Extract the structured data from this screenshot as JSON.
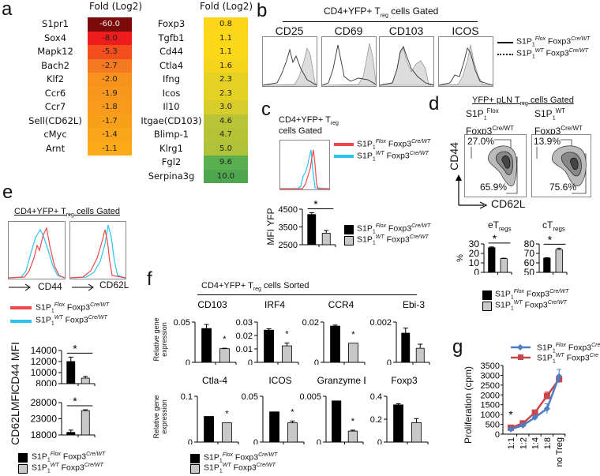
{
  "panels": {
    "a": "a",
    "b": "b",
    "c": "c",
    "d": "d",
    "e": "e",
    "f": "f",
    "g": "g"
  },
  "genotypes": {
    "flox": {
      "prefix": "S1P",
      "sub": "1",
      "allele": "Flox",
      "gene": "Foxp3",
      "gene_sup": "Cre/WT"
    },
    "wt": {
      "prefix": "S1P",
      "sub": "1",
      "allele": "WT",
      "gene": "Foxp3",
      "gene_sup": "Cre/WT"
    },
    "flox_g": {
      "prefix": "S1P",
      "sub": "1",
      "allele": "Flox",
      "gene": "Foxp3",
      "gene_sup": "Cre"
    },
    "wt_g": {
      "prefix": "S1P",
      "sub": "1",
      "allele": "WT",
      "gene": "Foxp3",
      "gene_sup": "Cre"
    }
  },
  "colors": {
    "flox_bar": "#000000",
    "wt_bar": "#c8c8c8",
    "flox_hist": "#f0484a",
    "wt_hist": "#29c4f0",
    "flox_line": "#4a7fc8",
    "wt_line": "#c8474a"
  },
  "panel_a": {
    "header": "Fold (Log2)",
    "down": [
      {
        "gene": "S1pr1",
        "value": "-60.0",
        "color": "#7b0a0a"
      },
      {
        "gene": "Sox4",
        "value": "-8.0",
        "color": "#ee1c1c"
      },
      {
        "gene": "Mapk12",
        "value": "-5.3",
        "color": "#f24e1e"
      },
      {
        "gene": "Bach2",
        "value": "-2.7",
        "color": "#f47920"
      },
      {
        "gene": "Klf2",
        "value": "-2.0",
        "color": "#f7931d"
      },
      {
        "gene": "Ccr6",
        "value": "-1.9",
        "color": "#f7971d"
      },
      {
        "gene": "Ccr7",
        "value": "-1.8",
        "color": "#f89b1c"
      },
      {
        "gene": "Sell(CD62L)",
        "value": "-1.7",
        "color": "#f9a01b"
      },
      {
        "gene": "cMyc",
        "value": "-1.4",
        "color": "#faa51a"
      },
      {
        "gene": "Arnt",
        "value": "-1.1",
        "color": "#fbab18"
      }
    ],
    "up": [
      {
        "gene": "Foxp3",
        "value": "0.8",
        "color": "#fdd519"
      },
      {
        "gene": "Tgfb1",
        "value": "1.1",
        "color": "#fdd819"
      },
      {
        "gene": "Cd44",
        "value": "1.1",
        "color": "#fdd819"
      },
      {
        "gene": "Ctla4",
        "value": "1.6",
        "color": "#f5d41d"
      },
      {
        "gene": "Ifng",
        "value": "2.3",
        "color": "#e6d224"
      },
      {
        "gene": "Icos",
        "value": "2.3",
        "color": "#e3d125"
      },
      {
        "gene": "Il10",
        "value": "3.0",
        "color": "#d8cd2a"
      },
      {
        "gene": "Itgae(CD103)",
        "value": "4.6",
        "color": "#b9c436"
      },
      {
        "gene": "Blimp-1",
        "value": "4.7",
        "color": "#b6c337"
      },
      {
        "gene": "Klrg1",
        "value": "5.0",
        "color": "#b0c239"
      },
      {
        "gene": "Fgl2",
        "value": "9.6",
        "color": "#5aaf4f"
      },
      {
        "gene": "Serpina3g",
        "value": "10.0",
        "color": "#4ea64f"
      }
    ]
  },
  "panel_b": {
    "title_pre": "CD4+YFP+ T",
    "title_sub": "reg",
    "title_post": " cells Gated",
    "markers": [
      "CD25",
      "CD69",
      "CD103",
      "ICOS"
    ]
  },
  "panel_c": {
    "title_pre": "CD4+YFP+ T",
    "title_sub": "reg",
    "title_line2": "cells Gated",
    "ylabel": "MFI YFP"
  },
  "panel_d": {
    "title_pre": "YFP+ pLN T",
    "title_sub": "reg",
    "title_post": " cells Gated",
    "col1_l1": "S1P",
    "col1_sub": "1",
    "col1_sup": "Flox",
    "col1_l2": "Foxp3",
    "col1_l2sup": "Cre/WT",
    "col2_l1": "S1P",
    "col2_sub": "1",
    "col2_sup": "WT",
    "col2_l2": "Foxp3",
    "col2_l2sup": "Cre/WT",
    "yaxis": "CD44",
    "xaxis": "CD62L",
    "gates": {
      "flox_upper": "27.0%",
      "flox_lower": "65.9%",
      "wt_upper": "13.9%",
      "wt_lower": "75.6%"
    },
    "chart1_title": "eT",
    "chart1_sub": "regs",
    "chart2_title": "cT",
    "chart2_sub": "regs",
    "ylabel": "%"
  },
  "panel_e": {
    "title_pre": "CD4+YFP+ T",
    "title_sub": "reg",
    "title_post": " cells Gated",
    "hist1": "CD44",
    "hist2": "CD62L",
    "ylabel1": "CD44 MFI",
    "ylabel2": "CD62LMFI"
  },
  "panel_f": {
    "title_pre": "CD4+YFP+ T",
    "title_sub": "reg",
    "title_post": " cells Sorted",
    "ylabel": "Relative  gene expression"
  },
  "panel_g": {
    "ylabel": "Proliferation (cpm)"
  },
  "chart_data": [
    {
      "id": "c_yfp",
      "type": "bar",
      "title": "",
      "ylabel": "MFI YFP",
      "ylim": [
        2500,
        4500
      ],
      "ticks": [
        "2500",
        "3500",
        "4500"
      ],
      "tickvals": [
        2500,
        3500,
        4500
      ],
      "values": [
        4200,
        3150
      ],
      "errors": [
        100,
        150
      ],
      "sig": "line"
    },
    {
      "id": "d_et",
      "type": "bar",
      "title": "eTregs",
      "ylabel": "%",
      "ylim": [
        0,
        30
      ],
      "ticks": [
        "0",
        "10",
        "20",
        "30"
      ],
      "tickvals": [
        0,
        10,
        20,
        30
      ],
      "values": [
        26,
        14.5
      ],
      "errors": [
        0.8,
        0.4
      ],
      "sig": "line"
    },
    {
      "id": "d_ct",
      "type": "bar",
      "title": "cTregs",
      "ylabel": "%",
      "ylim": [
        50,
        80
      ],
      "ticks": [
        "50",
        "60",
        "70",
        "80"
      ],
      "tickvals": [
        50,
        60,
        70,
        80
      ],
      "values": [
        65,
        74
      ],
      "errors": [
        0.5,
        1.5
      ],
      "sig": "line"
    },
    {
      "id": "e_cd44",
      "type": "bar",
      "title": "",
      "ylabel": "CD44 MFI",
      "ylim": [
        8000,
        14000
      ],
      "ticks": [
        "8000",
        "10000",
        "12000",
        "14000"
      ],
      "tickvals": [
        8000,
        10000,
        12000,
        14000
      ],
      "values": [
        12000,
        9000
      ],
      "errors": [
        800,
        300
      ],
      "sig": "line"
    },
    {
      "id": "e_cd62l",
      "type": "bar",
      "title": "",
      "ylabel": "CD62LMFI",
      "ylim": [
        18000,
        28000
      ],
      "ticks": [
        "18000",
        "23000",
        "28000"
      ],
      "tickvals": [
        18000,
        23000,
        28000
      ],
      "values": [
        18800,
        25500
      ],
      "errors": [
        700,
        300
      ],
      "sig": "line"
    },
    {
      "id": "f_cd103",
      "type": "bar",
      "title": "CD103",
      "ylim": [
        0,
        0.05
      ],
      "ticks": [
        "0",
        "0.05"
      ],
      "tickvals": [
        0,
        0.05
      ],
      "values": [
        0.042,
        0.017
      ],
      "errors": [
        0.005,
        0.0005
      ],
      "sig": "star"
    },
    {
      "id": "f_irf4",
      "type": "bar",
      "title": "IRF4",
      "ylim": [
        0,
        0.03
      ],
      "ticks": [
        "0",
        "0.01",
        "0.02",
        "0.03"
      ],
      "tickvals": [
        0,
        0.01,
        0.02,
        0.03
      ],
      "values": [
        0.024,
        0.0123
      ],
      "errors": [
        0.001,
        0.002
      ],
      "sig": "star"
    },
    {
      "id": "f_ccr4",
      "type": "bar",
      "title": "CCR4",
      "ylim": [
        0,
        0.02
      ],
      "ticks": [
        "0",
        "0.02"
      ],
      "tickvals": [
        0,
        0.02
      ],
      "values": [
        0.018,
        0.0095
      ],
      "errors": [
        0.0005,
        0
      ],
      "sig": "star"
    },
    {
      "id": "f_ebi3",
      "type": "bar",
      "title": "Ebi-3",
      "ylim": [
        0,
        0.002
      ],
      "ticks": [
        "0",
        "0.002"
      ],
      "tickvals": [
        0,
        0.002
      ],
      "values": [
        0.00145,
        0.0007
      ],
      "errors": [
        0.00025,
        0.0002
      ],
      "sig": "none"
    },
    {
      "id": "f_ctla4",
      "type": "bar",
      "title": "Ctla-4",
      "ylim": [
        0,
        0.1
      ],
      "ticks": [
        "0",
        "0.1"
      ],
      "tickvals": [
        0,
        0.1
      ],
      "values": [
        0.056,
        0.042
      ],
      "errors": [
        0,
        0
      ],
      "sig": "star"
    },
    {
      "id": "f_icos",
      "type": "bar",
      "title": "ICOS",
      "ylim": [
        0,
        0.05
      ],
      "ticks": [
        "0",
        "0.05"
      ],
      "tickvals": [
        0,
        0.05
      ],
      "values": [
        0.033,
        0.021
      ],
      "errors": [
        0,
        0.002
      ],
      "sig": "star"
    },
    {
      "id": "f_gzmb",
      "type": "bar",
      "title": "Granzyme B",
      "ylim": [
        0,
        0.005
      ],
      "ticks": [
        "0",
        "0.005"
      ],
      "tickvals": [
        0,
        0.005
      ],
      "values": [
        0.0045,
        0.0012
      ],
      "errors": [
        0,
        0.0001
      ],
      "sig": "star"
    },
    {
      "id": "f_foxp3",
      "type": "bar",
      "title": "Foxp3",
      "ylim": [
        0,
        0.4
      ],
      "ticks": [
        "0",
        "0.2",
        "0.4"
      ],
      "tickvals": [
        0,
        0.2,
        0.4
      ],
      "values": [
        0.325,
        0.17
      ],
      "errors": [
        0.01,
        0.035
      ],
      "sig": "none"
    },
    {
      "id": "g_prolif",
      "type": "line",
      "ylabel": "Proliferation (cpm)",
      "ylim": [
        0,
        3500
      ],
      "ticks": [
        "0",
        "500",
        "1000",
        "1500",
        "2000",
        "2500",
        "3000",
        "3500"
      ],
      "tickvals": [
        0,
        500,
        1000,
        1500,
        2000,
        2500,
        3000,
        3500
      ],
      "categories": [
        "1:1",
        "1:2",
        "1:4",
        "1:8",
        "no Treg"
      ],
      "series": [
        {
          "name": "S1P1Flox Foxp3Cre",
          "values": [
            250,
            450,
            850,
            1300,
            2950
          ],
          "errors": [
            50,
            40,
            60,
            250,
            350
          ]
        },
        {
          "name": "S1P1WT Foxp3Cre",
          "values": [
            330,
            550,
            1100,
            1950,
            2800
          ],
          "errors": [
            40,
            40,
            60,
            200,
            150
          ]
        }
      ],
      "annotation": "*"
    }
  ],
  "sig_mark": "*"
}
